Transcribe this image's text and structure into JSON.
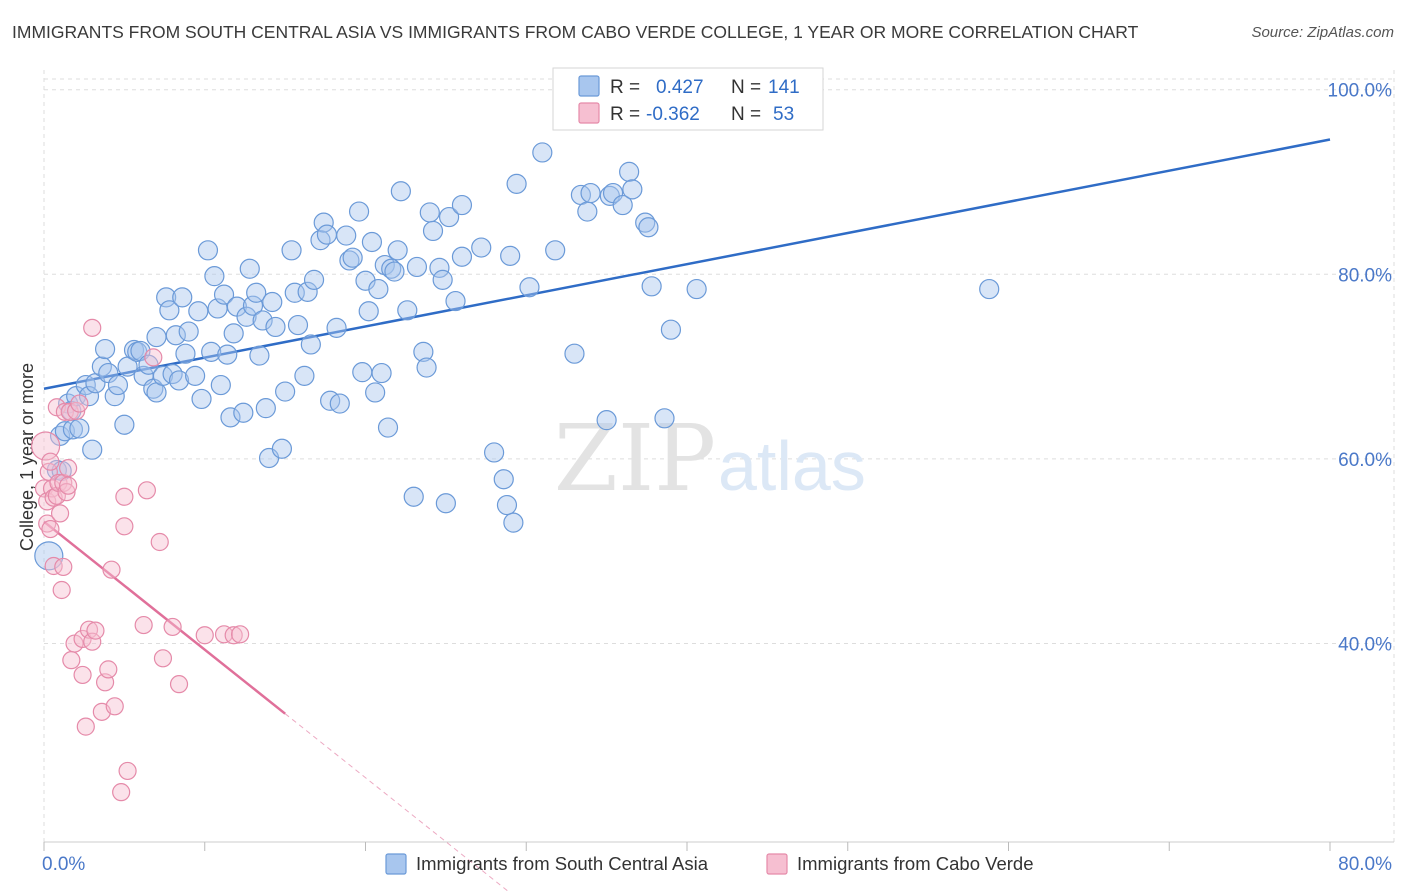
{
  "title": "IMMIGRANTS FROM SOUTH CENTRAL ASIA VS IMMIGRANTS FROM CABO VERDE COLLEGE, 1 YEAR OR MORE CORRELATION CHART",
  "source": "Source: ZipAtlas.com",
  "watermark": {
    "zip": "ZIP",
    "atlas": "atlas"
  },
  "colors": {
    "blue_fill": "#a8c6ee",
    "blue_stroke": "#6b9ad8",
    "blue_line": "#2f6cc6",
    "pink_fill": "#f6bfd1",
    "pink_stroke": "#e58aa9",
    "pink_line": "#e0709a",
    "grid": "#dddddd",
    "tick_text": "#4a78c8"
  },
  "legend_box": {
    "rows": [
      {
        "r_label": "R =",
        "r_value": "0.427",
        "n_label": "N =",
        "n_value": "141"
      },
      {
        "r_label": "R =",
        "r_value": "-0.362",
        "n_label": "N =",
        "n_value": "53"
      }
    ]
  },
  "chart_data": {
    "type": "scatter",
    "xlabel": "",
    "ylabel": "College, 1 year or more",
    "xlim": [
      0,
      80
    ],
    "ylim": [
      18.5,
      103
    ],
    "x_tick_labels": [
      "0.0%",
      "80.0%"
    ],
    "y_ticks": [
      40,
      60,
      80,
      100
    ],
    "y_tick_labels": [
      "40.0%",
      "60.0%",
      "80.0%",
      "100.0%"
    ],
    "grid": true,
    "legend_position": "bottom",
    "series": [
      {
        "name": "Immigrants from South Central Asia",
        "color": "#a8c6ee",
        "trend": {
          "x": [
            0,
            80
          ],
          "y": [
            67.6,
            94.6
          ]
        },
        "points": [
          [
            0.3,
            49.5
          ],
          [
            0.8,
            58.8
          ],
          [
            1.0,
            62.5
          ],
          [
            1.1,
            58.7
          ],
          [
            1.3,
            63.0
          ],
          [
            1.5,
            66.0
          ],
          [
            1.7,
            65.2
          ],
          [
            1.8,
            63.2
          ],
          [
            2.0,
            66.8
          ],
          [
            2.2,
            63.3
          ],
          [
            2.6,
            68.0
          ],
          [
            2.8,
            66.8
          ],
          [
            3.0,
            61.0
          ],
          [
            3.2,
            68.2
          ],
          [
            3.6,
            70.0
          ],
          [
            3.8,
            71.9
          ],
          [
            4.0,
            69.3
          ],
          [
            4.4,
            66.8
          ],
          [
            4.6,
            68.0
          ],
          [
            5.0,
            63.7
          ],
          [
            5.2,
            70.0
          ],
          [
            5.6,
            71.8
          ],
          [
            5.8,
            71.6
          ],
          [
            6.0,
            71.7
          ],
          [
            6.2,
            69.0
          ],
          [
            6.5,
            70.2
          ],
          [
            6.8,
            67.6
          ],
          [
            7.0,
            67.2
          ],
          [
            7.0,
            73.2
          ],
          [
            7.4,
            69.0
          ],
          [
            7.6,
            77.5
          ],
          [
            7.8,
            76.1
          ],
          [
            8.0,
            69.2
          ],
          [
            8.2,
            73.4
          ],
          [
            8.4,
            68.5
          ],
          [
            8.6,
            77.5
          ],
          [
            8.8,
            71.4
          ],
          [
            9.0,
            73.8
          ],
          [
            9.4,
            69.0
          ],
          [
            9.6,
            76.0
          ],
          [
            9.8,
            66.5
          ],
          [
            10.2,
            82.6
          ],
          [
            10.4,
            71.6
          ],
          [
            10.6,
            79.8
          ],
          [
            10.8,
            76.3
          ],
          [
            11.0,
            68.0
          ],
          [
            11.2,
            77.8
          ],
          [
            11.4,
            71.3
          ],
          [
            11.6,
            64.5
          ],
          [
            11.8,
            73.6
          ],
          [
            12.0,
            76.5
          ],
          [
            12.4,
            65.0
          ],
          [
            12.6,
            75.4
          ],
          [
            12.8,
            80.6
          ],
          [
            13.0,
            76.6
          ],
          [
            13.2,
            78.0
          ],
          [
            13.4,
            71.2
          ],
          [
            13.6,
            75.0
          ],
          [
            13.8,
            65.5
          ],
          [
            14.0,
            60.1
          ],
          [
            14.2,
            77.0
          ],
          [
            14.4,
            74.3
          ],
          [
            14.8,
            61.1
          ],
          [
            15.0,
            67.3
          ],
          [
            15.4,
            82.6
          ],
          [
            15.6,
            78.0
          ],
          [
            15.8,
            74.5
          ],
          [
            16.2,
            69.0
          ],
          [
            16.4,
            78.1
          ],
          [
            16.6,
            72.4
          ],
          [
            16.8,
            79.4
          ],
          [
            17.2,
            83.7
          ],
          [
            17.4,
            85.6
          ],
          [
            17.6,
            84.3
          ],
          [
            17.8,
            66.3
          ],
          [
            18.2,
            74.2
          ],
          [
            18.4,
            66.0
          ],
          [
            18.8,
            84.2
          ],
          [
            19.0,
            81.5
          ],
          [
            19.2,
            81.8
          ],
          [
            19.6,
            86.8
          ],
          [
            19.8,
            69.4
          ],
          [
            20.0,
            79.3
          ],
          [
            20.2,
            76.0
          ],
          [
            20.4,
            83.5
          ],
          [
            20.6,
            67.2
          ],
          [
            20.8,
            78.4
          ],
          [
            21.0,
            69.3
          ],
          [
            21.2,
            81.0
          ],
          [
            21.4,
            63.4
          ],
          [
            21.6,
            80.6
          ],
          [
            21.8,
            80.3
          ],
          [
            22.0,
            82.6
          ],
          [
            22.2,
            89.0
          ],
          [
            22.6,
            76.1
          ],
          [
            23.0,
            55.9
          ],
          [
            23.2,
            80.8
          ],
          [
            23.6,
            71.6
          ],
          [
            23.8,
            69.9
          ],
          [
            24.0,
            86.7
          ],
          [
            24.2,
            84.7
          ],
          [
            24.6,
            80.7
          ],
          [
            24.8,
            79.4
          ],
          [
            25.0,
            55.2
          ],
          [
            25.2,
            86.2
          ],
          [
            25.6,
            77.1
          ],
          [
            26.0,
            87.5
          ],
          [
            26.0,
            81.9
          ],
          [
            27.2,
            82.9
          ],
          [
            28.0,
            60.7
          ],
          [
            28.6,
            57.8
          ],
          [
            28.8,
            55.0
          ],
          [
            29.0,
            82.0
          ],
          [
            29.2,
            53.1
          ],
          [
            29.4,
            89.8
          ],
          [
            30.2,
            78.6
          ],
          [
            31.0,
            93.2
          ],
          [
            31.8,
            82.6
          ],
          [
            33.0,
            71.4
          ],
          [
            33.4,
            88.6
          ],
          [
            33.8,
            86.8
          ],
          [
            34.0,
            88.8
          ],
          [
            35.0,
            64.2
          ],
          [
            35.2,
            88.5
          ],
          [
            35.4,
            88.8
          ],
          [
            36.0,
            87.5
          ],
          [
            36.4,
            91.1
          ],
          [
            36.6,
            89.2
          ],
          [
            37.4,
            85.6
          ],
          [
            37.6,
            85.1
          ],
          [
            37.8,
            78.7
          ],
          [
            38.6,
            64.4
          ],
          [
            39.0,
            74.0
          ],
          [
            40.6,
            78.4
          ],
          [
            58.8,
            78.4
          ]
        ]
      },
      {
        "name": "Immigrants from Cabo Verde",
        "color": "#f6bfd1",
        "trend": {
          "x": [
            0,
            15
          ],
          "y": [
            53.2,
            32.4
          ]
        },
        "points": [
          [
            0.0,
            56.8
          ],
          [
            0.1,
            61.4
          ],
          [
            0.2,
            55.4
          ],
          [
            0.2,
            53.0
          ],
          [
            0.3,
            58.6
          ],
          [
            0.4,
            59.7
          ],
          [
            0.4,
            52.4
          ],
          [
            0.5,
            56.8
          ],
          [
            0.6,
            55.8
          ],
          [
            0.6,
            48.4
          ],
          [
            0.8,
            56.0
          ],
          [
            0.8,
            65.6
          ],
          [
            0.9,
            57.4
          ],
          [
            1.0,
            54.1
          ],
          [
            1.1,
            45.8
          ],
          [
            1.2,
            57.4
          ],
          [
            1.2,
            48.3
          ],
          [
            1.3,
            65.1
          ],
          [
            1.4,
            56.4
          ],
          [
            1.5,
            59.0
          ],
          [
            1.5,
            57.1
          ],
          [
            1.6,
            65.1
          ],
          [
            1.7,
            38.2
          ],
          [
            1.9,
            40.0
          ],
          [
            2.0,
            65.2
          ],
          [
            2.2,
            66.0
          ],
          [
            2.4,
            36.6
          ],
          [
            2.4,
            40.5
          ],
          [
            2.6,
            31.0
          ],
          [
            2.8,
            41.5
          ],
          [
            3.0,
            74.2
          ],
          [
            3.0,
            40.2
          ],
          [
            3.2,
            41.4
          ],
          [
            3.6,
            32.6
          ],
          [
            3.8,
            35.8
          ],
          [
            4.0,
            37.2
          ],
          [
            4.2,
            48.0
          ],
          [
            4.4,
            33.2
          ],
          [
            4.8,
            23.9
          ],
          [
            5.0,
            55.9
          ],
          [
            5.0,
            52.7
          ],
          [
            5.2,
            26.2
          ],
          [
            6.2,
            42.0
          ],
          [
            6.4,
            56.6
          ],
          [
            6.8,
            71.0
          ],
          [
            7.2,
            51.0
          ],
          [
            7.4,
            38.4
          ],
          [
            8.0,
            41.8
          ],
          [
            8.4,
            35.6
          ],
          [
            10.0,
            40.9
          ],
          [
            11.2,
            41.0
          ],
          [
            11.8,
            40.9
          ],
          [
            12.2,
            41.0
          ]
        ]
      }
    ]
  }
}
